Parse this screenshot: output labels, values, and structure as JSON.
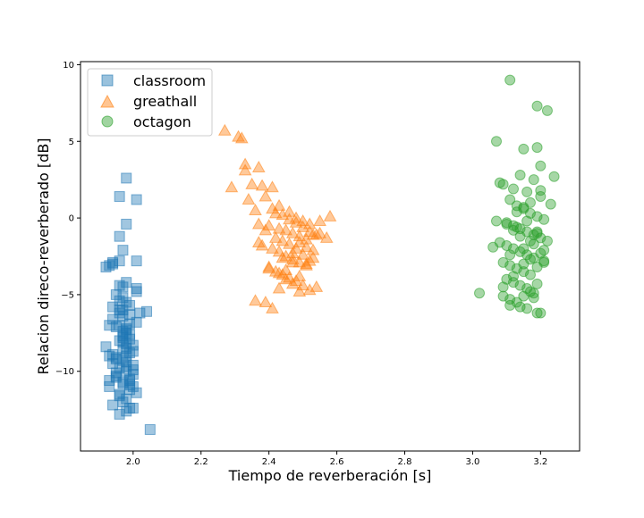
{
  "chart_data": {
    "type": "scatter",
    "title": "",
    "xlabel": "Tiempo de reverberación [s]",
    "ylabel": "Relacion direco-reverberado [dB]",
    "xlim": [
      1.845,
      3.315
    ],
    "ylim": [
      -15.2,
      10.2
    ],
    "xticks": [
      "2.0",
      "2.2",
      "2.4",
      "2.6",
      "2.8",
      "3.0",
      "3.2"
    ],
    "xtick_values": [
      2.0,
      2.2,
      2.4,
      2.6,
      2.8,
      3.0,
      3.2
    ],
    "yticks": [
      "10",
      "5",
      "0",
      "−5",
      "−10"
    ],
    "ytick_values": [
      10,
      5,
      0,
      -5,
      -10
    ],
    "grid": false,
    "legend": {
      "position": "top-left",
      "entries": [
        "classroom",
        "greathall",
        "octagon"
      ]
    },
    "series": [
      {
        "name": "classroom",
        "marker": "square",
        "color": "#1f77b4",
        "x": [
          1.98,
          2.01,
          1.96,
          1.98,
          1.96,
          1.94,
          1.97,
          2.01,
          1.93,
          1.92,
          1.98,
          1.96,
          2.01,
          1.95,
          1.97,
          1.98,
          1.94,
          1.96,
          1.99,
          1.94,
          2.01,
          1.93,
          1.98,
          1.97,
          1.99,
          2.05,
          1.97,
          1.92,
          1.97,
          1.99,
          1.93,
          1.95,
          1.98,
          2.0,
          1.96,
          1.98,
          2.0,
          1.95,
          1.99,
          1.97,
          1.93,
          1.99,
          2.01,
          1.96,
          1.97,
          1.94,
          1.98,
          2.0,
          1.95,
          2.0,
          1.97,
          1.98,
          1.96,
          1.99,
          2.01,
          1.94,
          1.96,
          1.99,
          1.97,
          2.02,
          1.94,
          1.97,
          1.98,
          1.95,
          1.99,
          2.0,
          1.96,
          1.96,
          1.98,
          1.99,
          1.94,
          1.98,
          1.96,
          1.97,
          1.99,
          2.04,
          1.93,
          1.95,
          1.97,
          2.0,
          1.98,
          1.96,
          1.98,
          1.98,
          1.97,
          1.95,
          1.99,
          2.0,
          1.96,
          1.97
        ],
        "y": [
          2.6,
          1.2,
          1.4,
          -0.4,
          -1.2,
          -2.9,
          -2.1,
          -2.8,
          -3.1,
          -3.2,
          -4.2,
          -4.4,
          -4.6,
          -5.0,
          -5.2,
          -5.5,
          -5.8,
          -6.0,
          -6.3,
          -6.6,
          -6.8,
          -7.0,
          -7.2,
          -7.4,
          -7.6,
          -13.8,
          -8.1,
          -8.4,
          -8.6,
          -8.8,
          -9.0,
          -9.2,
          -9.4,
          -9.6,
          -9.8,
          -10.0,
          -10.2,
          -10.4,
          -10.6,
          -10.8,
          -11.0,
          -11.2,
          -11.4,
          -11.6,
          -12.0,
          -12.2,
          -12.6,
          -12.4,
          -9.1,
          -8.3,
          -7.8,
          -7.5,
          -6.2,
          -5.7,
          -4.8,
          -3.0,
          -2.8,
          -6.9,
          -6.0,
          -6.2,
          -8.9,
          -9.3,
          -9.7,
          -10.1,
          -10.5,
          -11.0,
          -11.5,
          -8.0,
          -8.5,
          -7.9,
          -9.5,
          -7.3,
          -12.8,
          -7.7,
          -10.9,
          -6.1,
          -10.6,
          -7.1,
          -4.5,
          -9.9,
          -8.2,
          -5.4,
          -11.8,
          -9.0,
          -6.4,
          -10.3,
          -12.4,
          -8.7,
          -7.0,
          -10.7
        ]
      },
      {
        "name": "greathall",
        "marker": "triangle",
        "color": "#ff7f0e",
        "x": [
          2.27,
          2.31,
          2.32,
          2.33,
          2.33,
          2.37,
          2.29,
          2.35,
          2.38,
          2.41,
          2.34,
          2.39,
          2.36,
          2.42,
          2.44,
          2.37,
          2.4,
          2.43,
          2.46,
          2.48,
          2.5,
          2.52,
          2.45,
          2.47,
          2.49,
          2.51,
          2.53,
          2.55,
          2.57,
          2.58,
          2.38,
          2.41,
          2.43,
          2.45,
          2.47,
          2.49,
          2.51,
          2.53,
          2.4,
          2.42,
          2.44,
          2.46,
          2.48,
          2.5,
          2.52,
          2.54,
          2.36,
          2.39,
          2.41,
          2.43,
          2.45,
          2.47,
          2.49,
          2.51,
          2.53,
          2.55,
          2.42,
          2.44,
          2.46,
          2.48,
          2.5,
          2.52,
          2.4,
          2.43,
          2.45,
          2.47,
          2.49,
          2.51,
          2.37,
          2.39,
          2.41,
          2.43,
          2.46,
          2.48,
          2.5,
          2.52,
          2.54,
          2.44,
          2.47,
          2.49
        ],
        "y": [
          5.7,
          5.3,
          5.2,
          3.5,
          3.1,
          3.3,
          2.0,
          2.2,
          2.1,
          2.0,
          1.2,
          1.4,
          0.5,
          0.3,
          0.2,
          -0.4,
          -0.5,
          -0.7,
          -0.1,
          0.0,
          -0.2,
          -0.4,
          -0.8,
          -1.0,
          -1.2,
          -1.4,
          -1.1,
          -0.2,
          -1.3,
          0.1,
          -1.8,
          -2.0,
          -2.2,
          -2.5,
          -2.7,
          -2.9,
          -3.0,
          -2.6,
          -3.2,
          -3.5,
          -3.7,
          -3.9,
          -4.1,
          -4.4,
          -4.7,
          -4.5,
          -5.4,
          -5.5,
          -5.9,
          -4.6,
          -3.4,
          -2.3,
          -1.6,
          -1.9,
          -2.1,
          -1.0,
          -1.3,
          -1.5,
          -1.7,
          -2.0,
          -2.4,
          -2.8,
          -3.3,
          -3.6,
          -4.0,
          -4.3,
          -4.8,
          -3.1,
          -1.6,
          -0.8,
          0.6,
          0.8,
          0.4,
          -0.3,
          -0.6,
          -0.9,
          -1.1,
          -2.6,
          -2.9,
          -3.8
        ]
      },
      {
        "name": "octagon",
        "marker": "circle",
        "color": "#2ca02c",
        "x": [
          3.11,
          3.19,
          3.22,
          3.07,
          3.15,
          3.19,
          3.2,
          3.09,
          3.14,
          3.18,
          3.24,
          3.08,
          3.12,
          3.16,
          3.2,
          3.23,
          3.11,
          3.13,
          3.15,
          3.17,
          3.19,
          3.21,
          3.1,
          3.12,
          3.14,
          3.16,
          3.18,
          3.2,
          3.22,
          3.06,
          3.08,
          3.1,
          3.12,
          3.14,
          3.16,
          3.18,
          3.2,
          3.09,
          3.11,
          3.13,
          3.15,
          3.17,
          3.19,
          3.21,
          3.1,
          3.12,
          3.14,
          3.16,
          3.18,
          3.02,
          3.09,
          3.11,
          3.13,
          3.15,
          3.17,
          3.19,
          3.11,
          3.14,
          3.16,
          3.18,
          3.2,
          3.12,
          3.15,
          3.17,
          3.19,
          3.13,
          3.16,
          3.1,
          3.12,
          3.14,
          3.18,
          3.21,
          3.11,
          3.15,
          3.17,
          3.19,
          3.13,
          3.15,
          3.17,
          3.2,
          3.07,
          3.09,
          3.19,
          3.21
        ],
        "y": [
          9.0,
          7.3,
          7.0,
          5.0,
          4.5,
          4.6,
          3.4,
          2.2,
          2.8,
          2.5,
          2.7,
          2.3,
          1.9,
          1.7,
          1.4,
          0.9,
          1.2,
          0.8,
          0.6,
          0.3,
          0.1,
          -0.1,
          -0.3,
          -0.5,
          -0.7,
          -0.9,
          -1.1,
          -1.3,
          -1.5,
          -1.9,
          -1.6,
          -1.8,
          -2.0,
          -2.2,
          -2.4,
          -2.6,
          -2.3,
          -2.9,
          -3.1,
          -3.3,
          -3.5,
          -3.7,
          -3.2,
          -2.8,
          -4.0,
          -4.2,
          -4.4,
          -4.6,
          -4.9,
          -4.9,
          -5.1,
          -5.3,
          -5.5,
          -5.1,
          -4.8,
          -4.3,
          -5.7,
          -5.8,
          -5.9,
          -5.2,
          -6.2,
          -3.8,
          -3.0,
          -2.7,
          -1.0,
          -0.6,
          -0.2,
          -0.4,
          -0.8,
          -1.2,
          -1.7,
          -2.1,
          -2.4,
          -2.0,
          -1.5,
          -0.9,
          0.4,
          0.7,
          1.0,
          1.8,
          -0.2,
          -4.5,
          -6.2,
          -2.9
        ]
      }
    ]
  }
}
